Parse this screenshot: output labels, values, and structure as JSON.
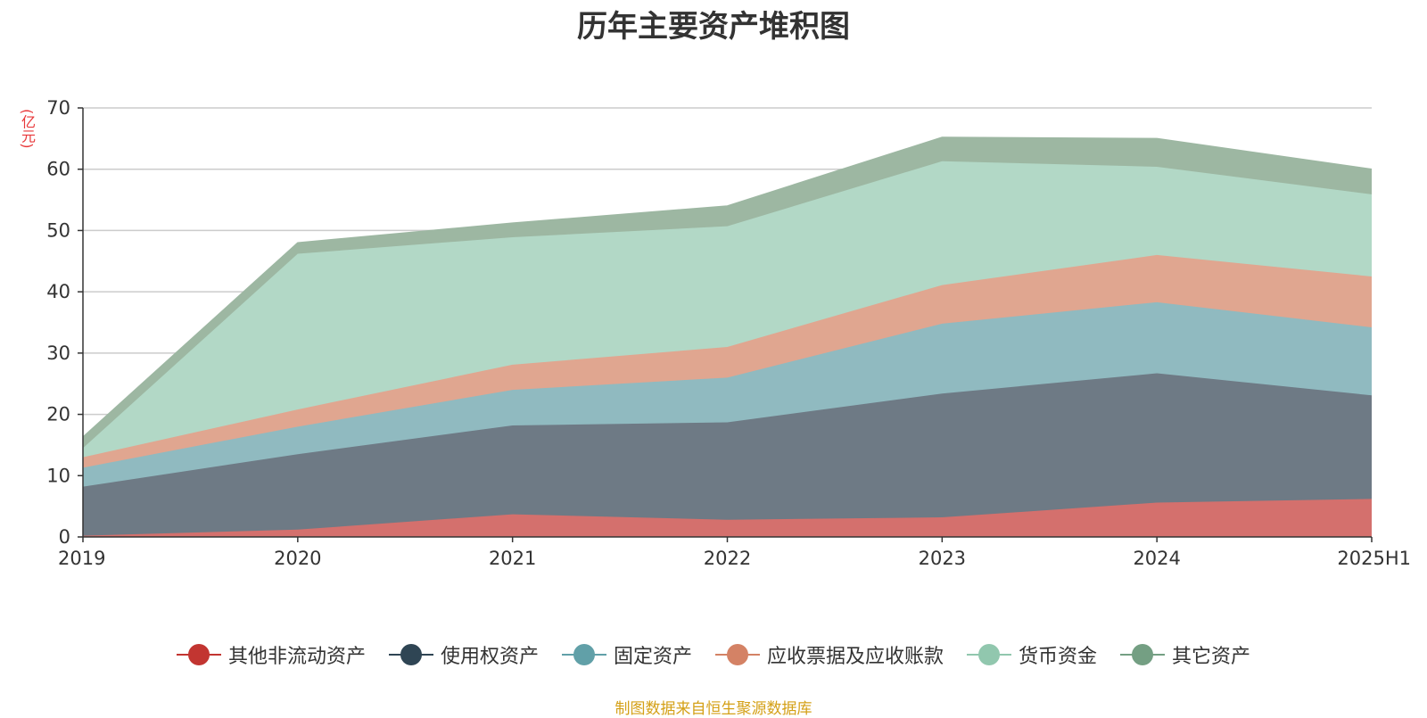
{
  "chart_data": {
    "type": "area",
    "stacked": true,
    "title": "历年主要资产堆积图",
    "y_unit": "(亿元)",
    "categories": [
      "2019",
      "2020",
      "2021",
      "2022",
      "2023",
      "2024",
      "2025H1"
    ],
    "ylim": [
      0,
      70
    ],
    "yticks": [
      0,
      10,
      20,
      30,
      40,
      50,
      60,
      70
    ],
    "grid": true,
    "legend_position": "bottom",
    "series": [
      {
        "name": "其他非流动资产",
        "color": "#c23531",
        "area_color": "#d4706d",
        "values": [
          0.2,
          1.2,
          3.7,
          2.8,
          3.2,
          5.6,
          6.2
        ]
      },
      {
        "name": "使用权资产",
        "color": "#2f4554",
        "area_color": "#6e7a85",
        "values": [
          8.0,
          12.3,
          14.5,
          15.9,
          20.2,
          21.1,
          16.9
        ]
      },
      {
        "name": "固定资产",
        "color": "#61a0a8",
        "area_color": "#90bac0",
        "values": [
          3.1,
          4.5,
          5.8,
          7.3,
          11.4,
          11.6,
          11.1
        ]
      },
      {
        "name": "应收票据及应收账款",
        "color": "#d48265",
        "area_color": "#e0a690",
        "values": [
          1.7,
          2.8,
          4.1,
          5.0,
          6.3,
          7.7,
          8.3
        ]
      },
      {
        "name": "货币资金",
        "color": "#91c7ae",
        "area_color": "#b2d8c6",
        "values": [
          1.5,
          25.4,
          20.8,
          19.7,
          20.2,
          14.4,
          13.4
        ]
      },
      {
        "name": "其它资产",
        "color": "#749f83",
        "area_color": "#9db7a2",
        "values": [
          1.8,
          1.8,
          2.3,
          3.3,
          3.9,
          4.6,
          4.1
        ]
      }
    ]
  },
  "source_note": "制图数据来自恒生聚源数据库"
}
